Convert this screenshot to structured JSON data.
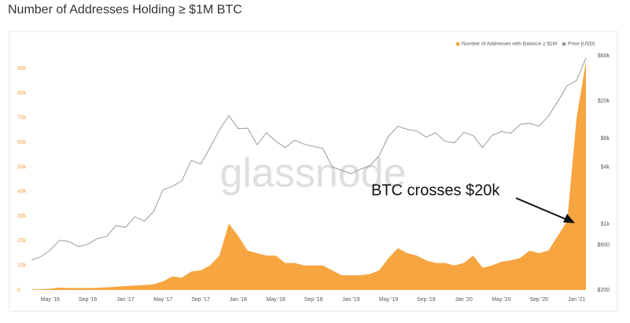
{
  "chart_data": {
    "type": "area",
    "title": "Number of Addresses Holding ≥ $1M BTC",
    "watermark": "glassnode",
    "annotation": "BTC crosses $20k",
    "legend_position": "top-right",
    "x": [
      "2016-03",
      "2016-04",
      "2016-05",
      "2016-06",
      "2016-07",
      "2016-08",
      "2016-09",
      "2016-10",
      "2016-11",
      "2016-12",
      "2017-01",
      "2017-02",
      "2017-03",
      "2017-04",
      "2017-05",
      "2017-06",
      "2017-07",
      "2017-08",
      "2017-09",
      "2017-10",
      "2017-11",
      "2017-12",
      "2018-01",
      "2018-02",
      "2018-03",
      "2018-04",
      "2018-05",
      "2018-06",
      "2018-07",
      "2018-08",
      "2018-09",
      "2018-10",
      "2018-11",
      "2018-12",
      "2019-01",
      "2019-02",
      "2019-03",
      "2019-04",
      "2019-05",
      "2019-06",
      "2019-07",
      "2019-08",
      "2019-09",
      "2019-10",
      "2019-11",
      "2019-12",
      "2020-01",
      "2020-02",
      "2020-03",
      "2020-04",
      "2020-05",
      "2020-06",
      "2020-07",
      "2020-08",
      "2020-09",
      "2020-10",
      "2020-11",
      "2020-12",
      "2021-01",
      "2021-02"
    ],
    "xlim": [
      "2016-03",
      "2021-02"
    ],
    "xticks": [
      {
        "value": "2016-05",
        "label": "May '16"
      },
      {
        "value": "2016-09",
        "label": "Sep '16"
      },
      {
        "value": "2017-01",
        "label": "Jan '17"
      },
      {
        "value": "2017-05",
        "label": "May '17"
      },
      {
        "value": "2017-09",
        "label": "Sep '17"
      },
      {
        "value": "2018-01",
        "label": "Jan '18"
      },
      {
        "value": "2018-05",
        "label": "May '18"
      },
      {
        "value": "2018-09",
        "label": "Sep '18"
      },
      {
        "value": "2019-01",
        "label": "Jan '19"
      },
      {
        "value": "2019-05",
        "label": "May '19"
      },
      {
        "value": "2019-09",
        "label": "Sep '19"
      },
      {
        "value": "2020-01",
        "label": "Jan '20"
      },
      {
        "value": "2020-05",
        "label": "May '20"
      },
      {
        "value": "2020-09",
        "label": "Sep '20"
      },
      {
        "value": "2021-01",
        "label": "Jan '21"
      }
    ],
    "ylim": [
      0,
      100000
    ],
    "yticks": [
      0,
      {
        "value": 10000,
        "label": "10k"
      },
      {
        "value": 20000,
        "label": "20k"
      },
      {
        "value": 30000,
        "label": "30k"
      },
      {
        "value": 40000,
        "label": "40k"
      },
      {
        "value": 50000,
        "label": "50k"
      },
      {
        "value": 60000,
        "label": "60k"
      },
      {
        "value": 70000,
        "label": "70k"
      },
      {
        "value": 80000,
        "label": "80k"
      },
      {
        "value": 90000,
        "label": "90k"
      }
    ],
    "y2_log": true,
    "y2lim": [
      200,
      80000
    ],
    "y2ticks": [
      {
        "value": 200,
        "label": "$200"
      },
      {
        "value": 600,
        "label": "$600"
      },
      {
        "value": 1000,
        "label": "$1k"
      },
      {
        "value": 4000,
        "label": "$4k"
      },
      {
        "value": 8000,
        "label": "$8k"
      },
      {
        "value": 20000,
        "label": "$20k"
      },
      {
        "value": 60000,
        "label": "$60k"
      }
    ],
    "series": [
      {
        "name": "Number of Addresses with Balance ≥ $1M",
        "color": "#f7a540",
        "axis": "y",
        "values": [
          300,
          300,
          500,
          1000,
          800,
          800,
          800,
          900,
          1100,
          1300,
          1600,
          1800,
          2000,
          2300,
          3500,
          5500,
          5000,
          7500,
          8000,
          10000,
          14000,
          27000,
          22000,
          16000,
          15000,
          14000,
          14000,
          11000,
          11000,
          10000,
          10000,
          10000,
          8000,
          6000,
          6000,
          6000,
          6500,
          8000,
          13000,
          17000,
          15000,
          14000,
          12000,
          11000,
          11000,
          10000,
          11000,
          14000,
          9000,
          10000,
          11500,
          12000,
          13000,
          16000,
          15000,
          16000,
          22000,
          28000,
          70000,
          93000
        ]
      },
      {
        "name": "Price [USD]",
        "color": "#999999",
        "axis": "y2",
        "values": [
          415,
          450,
          530,
          670,
          650,
          575,
          610,
          700,
          740,
          960,
          920,
          1190,
          1070,
          1350,
          2300,
          2500,
          2850,
          4700,
          4300,
          6400,
          9900,
          14000,
          10200,
          10300,
          6900,
          9200,
          7500,
          6400,
          7700,
          7000,
          6600,
          6300,
          4000,
          3700,
          3400,
          3800,
          4100,
          5300,
          8500,
          10800,
          10000,
          9600,
          8300,
          9200,
          7500,
          7200,
          9300,
          8600,
          6400,
          8600,
          9500,
          9100,
          11300,
          11600,
          10800,
          13800,
          19700,
          29000,
          33000,
          57000
        ]
      }
    ]
  }
}
